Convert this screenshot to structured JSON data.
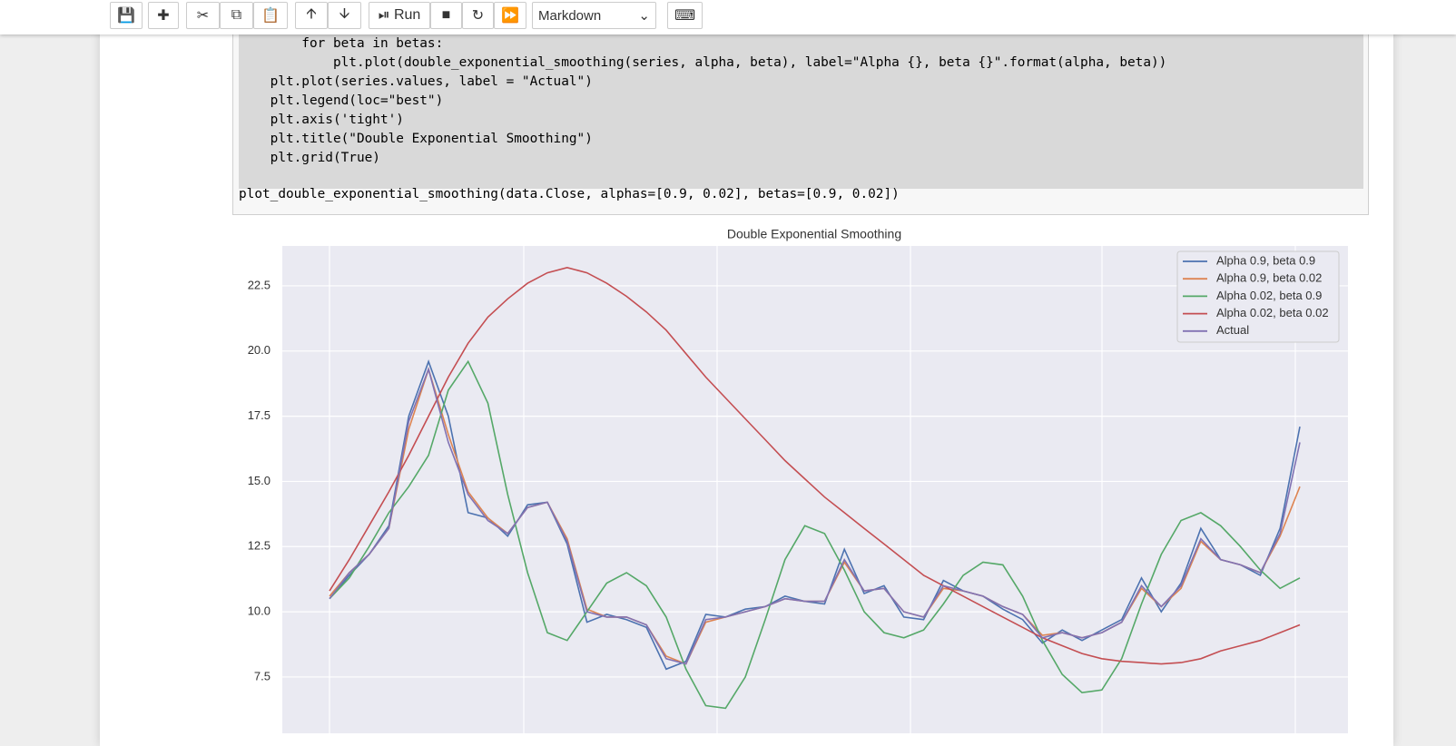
{
  "toolbar": {
    "run_label": "Run",
    "cell_type": "Markdown"
  },
  "code": {
    "lines": [
      "        for beta in betas:",
      "            plt.plot(double_exponential_smoothing(series, alpha, beta), label=\"Alpha {}, beta {}\".format(alpha, beta))",
      "    plt.plot(series.values, label = \"Actual\")",
      "    plt.legend(loc=\"best\")",
      "    plt.axis('tight')",
      "    plt.title(\"Double Exponential Smoothing\")",
      "    plt.grid(True)"
    ],
    "call": "plot_double_exponential_smoothing(data.Close, alphas=[0.9, 0.02], betas=[0.9, 0.02])"
  },
  "chart_data": {
    "type": "line",
    "title": "Double Exponential Smoothing",
    "ylim": [
      5.34,
      24.03
    ],
    "yticks": [
      7.5,
      10.0,
      12.5,
      15.0,
      17.5,
      20.0,
      22.5
    ],
    "grid": true,
    "legend": "upper right",
    "series": [
      {
        "name": "Alpha 0.9, beta 0.9",
        "color": "#4c72b0",
        "values": [
          10.5,
          11.4,
          12.2,
          13.3,
          17.5,
          19.6,
          17.5,
          13.8,
          13.6,
          12.9,
          14.1,
          14.2,
          12.6,
          9.6,
          9.9,
          9.7,
          9.4,
          7.8,
          8.1,
          9.9,
          9.8,
          10.1,
          10.2,
          10.6,
          10.4,
          10.3,
          12.4,
          10.7,
          11.0,
          9.8,
          9.7,
          11.2,
          10.8,
          10.6,
          10.1,
          9.7,
          8.8,
          9.3,
          8.9,
          9.3,
          9.7,
          11.3,
          10.0,
          11.1,
          13.2,
          12.0,
          11.8,
          11.4,
          13.2,
          17.1
        ]
      },
      {
        "name": "Alpha 0.9, beta 0.02",
        "color": "#dd8452",
        "values": [
          10.6,
          11.5,
          12.2,
          13.2,
          17.0,
          19.3,
          16.8,
          14.6,
          13.6,
          13.0,
          14.0,
          14.2,
          12.8,
          10.1,
          9.8,
          9.8,
          9.5,
          8.3,
          8.0,
          9.6,
          9.8,
          10.0,
          10.2,
          10.5,
          10.4,
          10.4,
          11.9,
          10.8,
          10.9,
          10.0,
          9.8,
          10.9,
          10.8,
          10.6,
          10.2,
          9.9,
          9.1,
          9.2,
          9.0,
          9.2,
          9.6,
          10.9,
          10.2,
          10.9,
          12.7,
          12.0,
          11.8,
          11.5,
          12.9,
          14.8
        ]
      },
      {
        "name": "Alpha 0.02, beta 0.9",
        "color": "#55a868",
        "values": [
          10.5,
          11.3,
          12.5,
          13.8,
          14.8,
          16.0,
          18.5,
          19.6,
          18.0,
          14.5,
          11.5,
          9.2,
          8.9,
          10.0,
          11.1,
          11.5,
          11.0,
          9.8,
          7.8,
          6.4,
          6.3,
          7.5,
          9.7,
          12.0,
          13.3,
          13.0,
          11.6,
          10.0,
          9.2,
          9.0,
          9.3,
          10.3,
          11.4,
          11.9,
          11.8,
          10.6,
          8.9,
          7.6,
          6.9,
          7.0,
          8.2,
          10.3,
          12.2,
          13.5,
          13.8,
          13.3,
          12.5,
          11.6,
          10.9,
          11.3
        ]
      },
      {
        "name": "Alpha 0.02, beta 0.02",
        "color": "#c44e52",
        "values": [
          10.8,
          12.0,
          13.3,
          14.6,
          16.0,
          17.5,
          19.0,
          20.3,
          21.3,
          22.0,
          22.6,
          23.0,
          23.2,
          23.0,
          22.6,
          22.1,
          21.5,
          20.8,
          19.9,
          19.0,
          18.2,
          17.4,
          16.6,
          15.8,
          15.1,
          14.4,
          13.8,
          13.2,
          12.6,
          12.0,
          11.4,
          11.0,
          10.6,
          10.2,
          9.8,
          9.4,
          9.0,
          8.7,
          8.4,
          8.2,
          8.1,
          8.05,
          8.0,
          8.05,
          8.2,
          8.5,
          8.7,
          8.9,
          9.2,
          9.5
        ]
      },
      {
        "name": "Actual",
        "color": "#8172b3",
        "values": [
          10.5,
          11.5,
          12.2,
          13.2,
          17.3,
          19.3,
          16.5,
          14.5,
          13.5,
          13.0,
          14.0,
          14.2,
          12.7,
          10.0,
          9.8,
          9.8,
          9.5,
          8.2,
          8.0,
          9.7,
          9.8,
          10.0,
          10.2,
          10.5,
          10.4,
          10.4,
          12.0,
          10.8,
          10.9,
          10.0,
          9.8,
          11.0,
          10.8,
          10.6,
          10.2,
          9.9,
          9.0,
          9.2,
          9.0,
          9.2,
          9.6,
          11.0,
          10.2,
          11.0,
          12.8,
          12.0,
          11.8,
          11.5,
          13.0,
          16.5
        ]
      }
    ]
  }
}
